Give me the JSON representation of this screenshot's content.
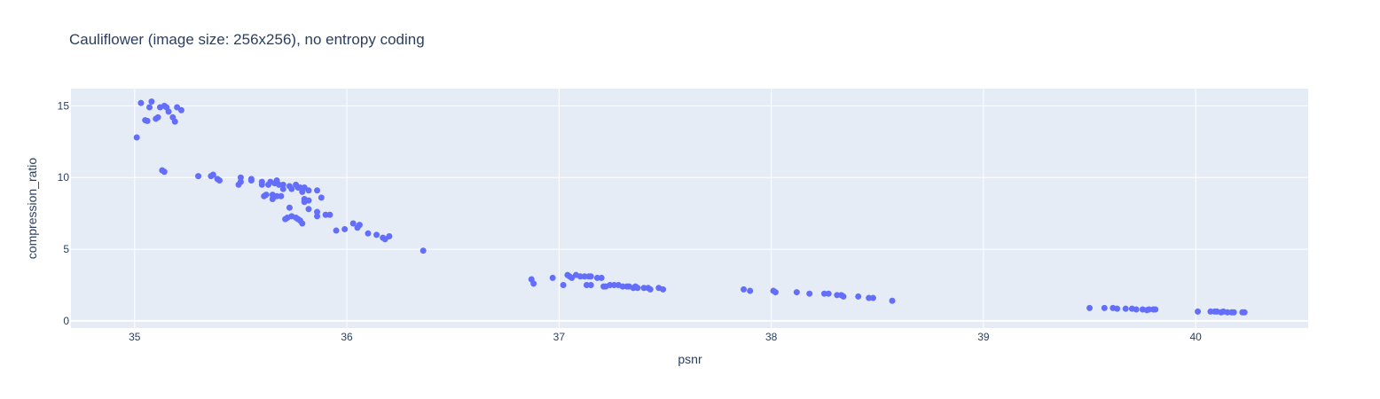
{
  "chart_data": {
    "type": "scatter",
    "title": "Cauliflower (image size: 256x256), no entropy coding",
    "xlabel": "psnr",
    "ylabel": "compression_ratio",
    "xlim": [
      34.7,
      40.53
    ],
    "ylim": [
      -0.5,
      16.2
    ],
    "xticks": [
      35,
      36,
      37,
      38,
      39,
      40
    ],
    "yticks": [
      0,
      5,
      10,
      15
    ],
    "grid": true,
    "marker_color": "#636efa",
    "background_color": "#e5ecf6",
    "series": [
      {
        "points": [
          [
            35.01,
            12.8
          ],
          [
            35.03,
            15.2
          ],
          [
            35.05,
            14.0
          ],
          [
            35.06,
            13.95
          ],
          [
            35.07,
            14.9
          ],
          [
            35.08,
            15.3
          ],
          [
            35.1,
            14.1
          ],
          [
            35.11,
            14.2
          ],
          [
            35.12,
            14.9
          ],
          [
            35.14,
            15.0
          ],
          [
            35.15,
            14.9
          ],
          [
            35.16,
            14.6
          ],
          [
            35.18,
            14.2
          ],
          [
            35.19,
            13.9
          ],
          [
            35.2,
            14.9
          ],
          [
            35.22,
            14.7
          ],
          [
            35.13,
            10.5
          ],
          [
            35.14,
            10.4
          ],
          [
            35.3,
            10.1
          ],
          [
            35.36,
            10.1
          ],
          [
            35.37,
            10.2
          ],
          [
            35.39,
            9.9
          ],
          [
            35.4,
            9.8
          ],
          [
            35.49,
            9.5
          ],
          [
            35.5,
            9.7
          ],
          [
            35.5,
            10.0
          ],
          [
            35.55,
            9.8
          ],
          [
            35.55,
            9.9
          ],
          [
            35.6,
            9.5
          ],
          [
            35.6,
            9.7
          ],
          [
            35.61,
            8.7
          ],
          [
            35.62,
            8.8
          ],
          [
            35.63,
            9.5
          ],
          [
            35.64,
            9.7
          ],
          [
            35.65,
            8.8
          ],
          [
            35.65,
            8.5
          ],
          [
            35.66,
            9.6
          ],
          [
            35.67,
            9.8
          ],
          [
            35.67,
            8.7
          ],
          [
            35.68,
            9.5
          ],
          [
            35.69,
            8.7
          ],
          [
            35.7,
            9.5
          ],
          [
            35.7,
            9.2
          ],
          [
            35.73,
            9.4
          ],
          [
            35.74,
            9.2
          ],
          [
            35.76,
            9.5
          ],
          [
            35.77,
            9.3
          ],
          [
            35.78,
            9.3
          ],
          [
            35.79,
            9.0
          ],
          [
            35.8,
            9.3
          ],
          [
            35.8,
            8.5
          ],
          [
            35.8,
            8.3
          ],
          [
            35.82,
            9.1
          ],
          [
            35.82,
            8.4
          ],
          [
            35.86,
            9.1
          ],
          [
            35.88,
            8.6
          ],
          [
            35.71,
            7.1
          ],
          [
            35.72,
            7.2
          ],
          [
            35.73,
            7.9
          ],
          [
            35.74,
            7.3
          ],
          [
            35.76,
            7.2
          ],
          [
            35.77,
            7.1
          ],
          [
            35.78,
            7.0
          ],
          [
            35.79,
            6.8
          ],
          [
            35.82,
            7.8
          ],
          [
            35.86,
            7.6
          ],
          [
            35.86,
            7.3
          ],
          [
            35.9,
            7.4
          ],
          [
            35.92,
            7.4
          ],
          [
            35.95,
            6.3
          ],
          [
            35.99,
            6.4
          ],
          [
            36.03,
            6.8
          ],
          [
            36.05,
            6.5
          ],
          [
            36.06,
            6.7
          ],
          [
            36.1,
            6.1
          ],
          [
            36.14,
            6.0
          ],
          [
            36.17,
            5.8
          ],
          [
            36.18,
            5.7
          ],
          [
            36.2,
            5.9
          ],
          [
            36.36,
            4.9
          ],
          [
            36.87,
            2.9
          ],
          [
            36.88,
            2.6
          ],
          [
            36.97,
            3.0
          ],
          [
            37.02,
            2.5
          ],
          [
            37.04,
            3.2
          ],
          [
            37.05,
            3.1
          ],
          [
            37.06,
            3.0
          ],
          [
            37.08,
            3.2
          ],
          [
            37.1,
            3.1
          ],
          [
            37.12,
            3.1
          ],
          [
            37.14,
            3.1
          ],
          [
            37.15,
            3.1
          ],
          [
            37.18,
            3.0
          ],
          [
            37.2,
            3.0
          ],
          [
            37.13,
            2.5
          ],
          [
            37.15,
            2.5
          ],
          [
            37.21,
            2.4
          ],
          [
            37.22,
            2.4
          ],
          [
            37.24,
            2.5
          ],
          [
            37.26,
            2.5
          ],
          [
            37.28,
            2.5
          ],
          [
            37.3,
            2.4
          ],
          [
            37.32,
            2.4
          ],
          [
            37.33,
            2.4
          ],
          [
            37.35,
            2.3
          ],
          [
            37.36,
            2.4
          ],
          [
            37.37,
            2.3
          ],
          [
            37.4,
            2.3
          ],
          [
            37.42,
            2.3
          ],
          [
            37.43,
            2.2
          ],
          [
            37.47,
            2.3
          ],
          [
            37.49,
            2.2
          ],
          [
            37.87,
            2.2
          ],
          [
            37.9,
            2.1
          ],
          [
            38.01,
            2.1
          ],
          [
            38.02,
            2.0
          ],
          [
            38.12,
            2.0
          ],
          [
            38.18,
            1.9
          ],
          [
            38.25,
            1.9
          ],
          [
            38.27,
            1.9
          ],
          [
            38.31,
            1.8
          ],
          [
            38.33,
            1.8
          ],
          [
            38.34,
            1.7
          ],
          [
            38.41,
            1.7
          ],
          [
            38.46,
            1.6
          ],
          [
            38.48,
            1.6
          ],
          [
            38.57,
            1.4
          ],
          [
            39.5,
            0.9
          ],
          [
            39.57,
            0.9
          ],
          [
            39.61,
            0.9
          ],
          [
            39.63,
            0.85
          ],
          [
            39.67,
            0.85
          ],
          [
            39.7,
            0.85
          ],
          [
            39.72,
            0.8
          ],
          [
            39.75,
            0.8
          ],
          [
            39.77,
            0.75
          ],
          [
            39.78,
            0.8
          ],
          [
            39.8,
            0.8
          ],
          [
            39.81,
            0.8
          ],
          [
            40.01,
            0.65
          ],
          [
            40.07,
            0.65
          ],
          [
            40.09,
            0.65
          ],
          [
            40.1,
            0.65
          ],
          [
            40.12,
            0.6
          ],
          [
            40.13,
            0.65
          ],
          [
            40.15,
            0.6
          ],
          [
            40.17,
            0.6
          ],
          [
            40.18,
            0.6
          ],
          [
            40.22,
            0.6
          ],
          [
            40.23,
            0.6
          ]
        ]
      }
    ]
  }
}
